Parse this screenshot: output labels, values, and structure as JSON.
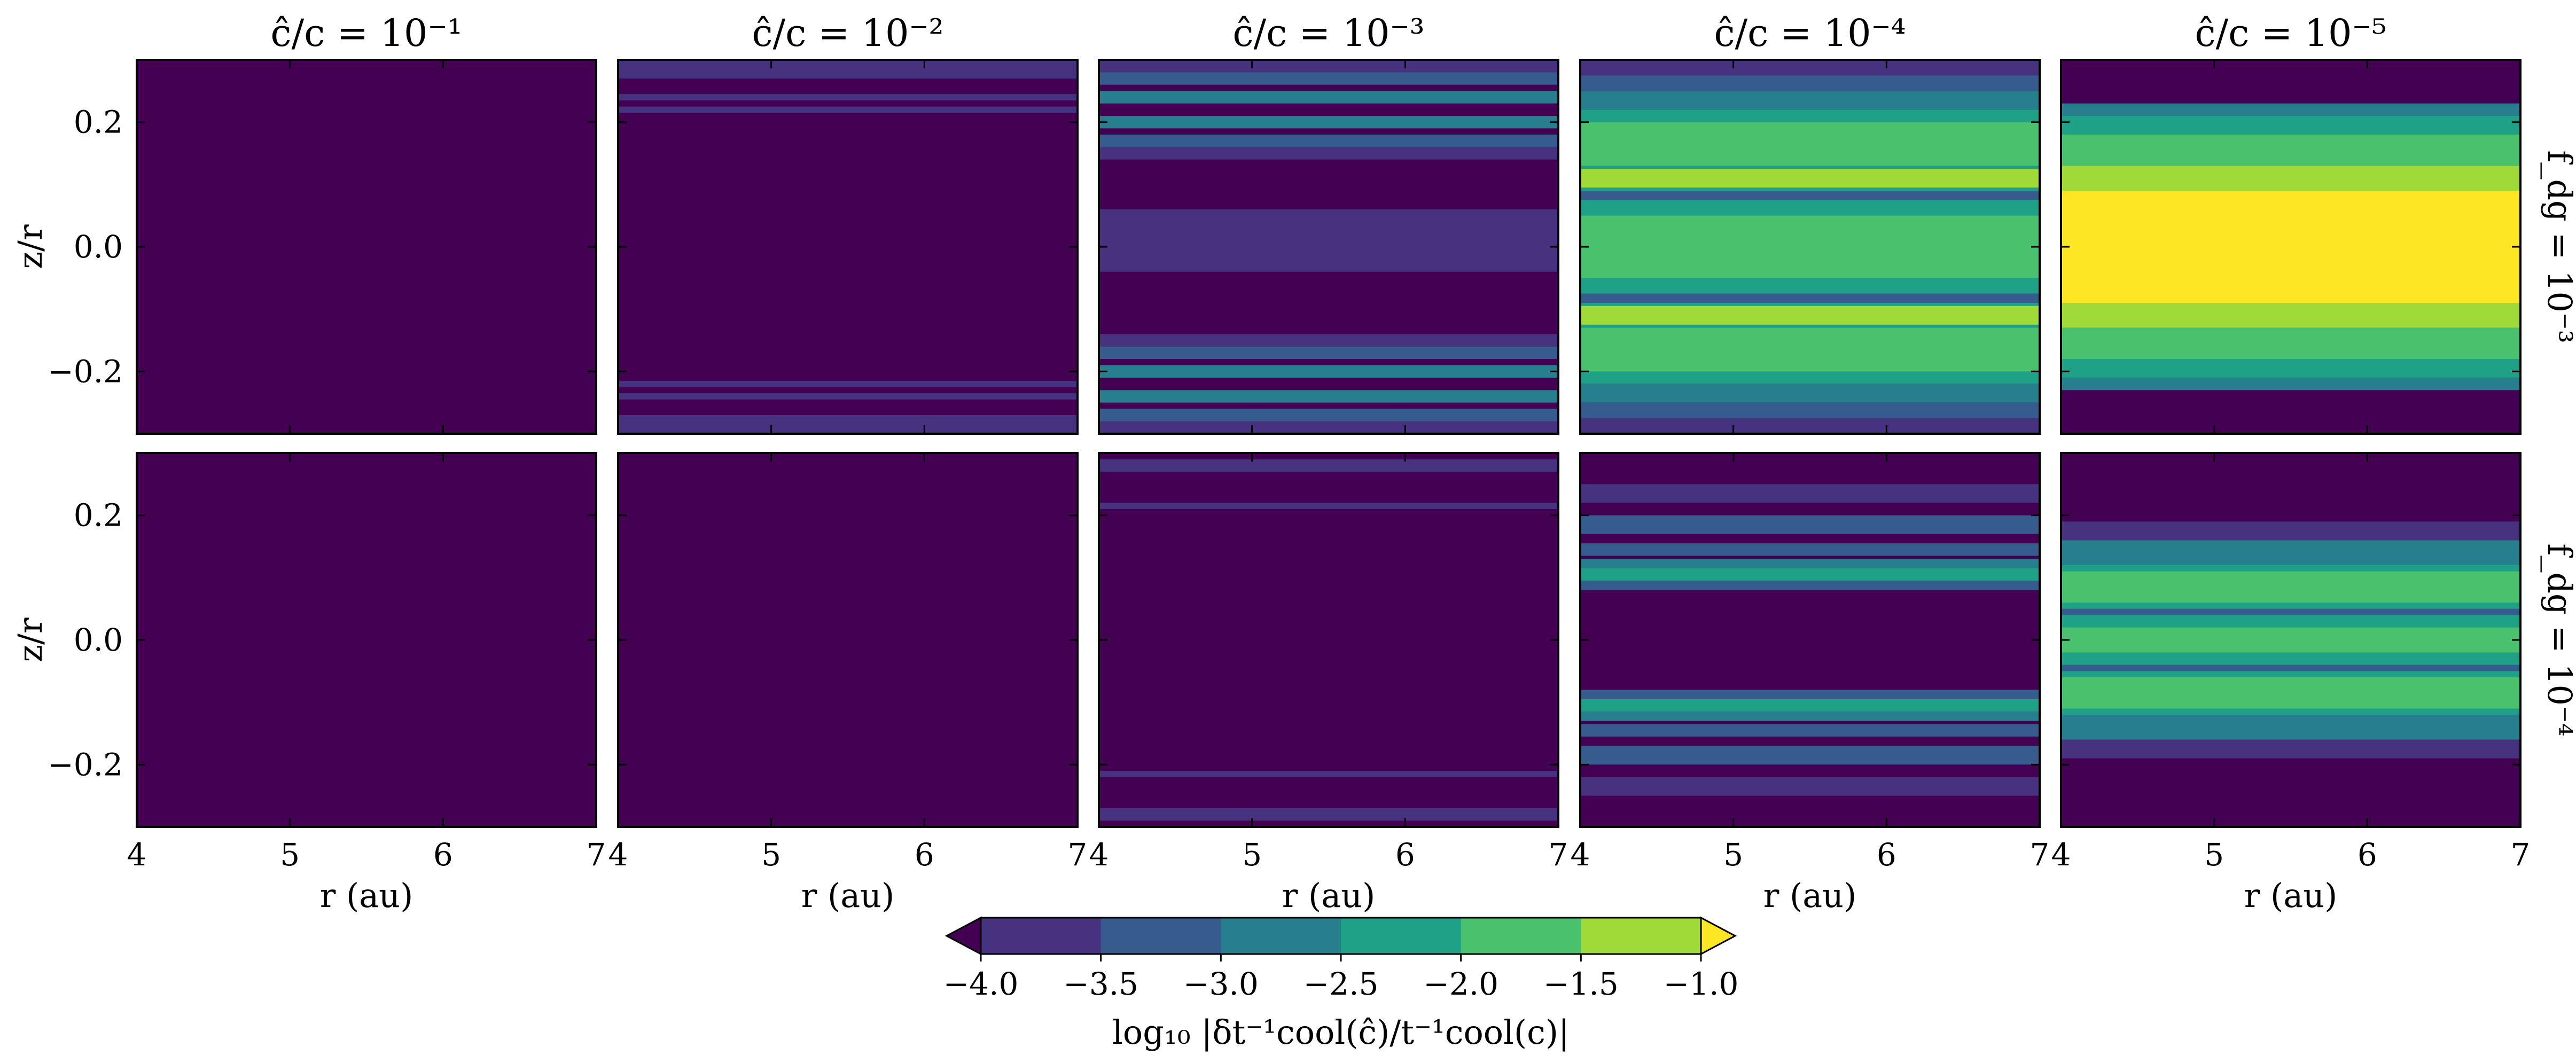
{
  "chart_data": {
    "type": "heatmap",
    "description_scale": "filled contour, viridis, 7 levels",
    "column_titles": [
      "ĉ/c = 10⁻¹",
      "ĉ/c = 10⁻²",
      "ĉ/c = 10⁻³",
      "ĉ/c = 10⁻⁴",
      "ĉ/c = 10⁻⁵"
    ],
    "row_labels": [
      "f_dg = 10⁻³",
      "f_dg = 10⁻⁴"
    ],
    "xlabel": "r (au)",
    "ylabel": "z/r",
    "xlim": [
      4,
      7
    ],
    "ylim": [
      -0.3,
      0.3
    ],
    "xticks": [
      4,
      5,
      6,
      7
    ],
    "xtick_labels": [
      "4",
      "5",
      "6",
      "7"
    ],
    "yticks": [
      0.2,
      0.0,
      -0.2
    ],
    "ytick_labels": [
      "0.2",
      "0.0",
      "−0.2"
    ],
    "colorbar": {
      "label": "log₁₀ |δt⁻¹cool(ĉ)/t⁻¹cool(c)|",
      "levels": [
        -4.0,
        -3.5,
        -3.0,
        -2.5,
        -2.0,
        -1.5,
        -1.0
      ],
      "tick_labels": [
        "−4.0",
        "−3.5",
        "−3.0",
        "−2.5",
        "−2.0",
        "−1.5",
        "−1.0"
      ],
      "extend": "both",
      "colors": [
        "#440154",
        "#46327e",
        "#365c8d",
        "#277f8e",
        "#1fa187",
        "#4ac16d",
        "#a0da39",
        "#fde725"
      ],
      "under_color": "#440154",
      "over_color": "#fde725"
    },
    "panels": [
      {
        "row": 0,
        "col": 0,
        "background_level": 0,
        "bands": []
      },
      {
        "row": 0,
        "col": 1,
        "background_level": 0,
        "bands": [
          {
            "z_outer": 0.3,
            "z_inner": 0.27,
            "level": 1,
            "symmetric": true
          },
          {
            "z_outer": 0.245,
            "z_inner": 0.235,
            "level": 1,
            "symmetric": true
          },
          {
            "z_outer": 0.225,
            "z_inner": 0.215,
            "level": 1,
            "symmetric": true
          }
        ]
      },
      {
        "row": 0,
        "col": 2,
        "background_level": 0,
        "bands": [
          {
            "z_outer": 0.3,
            "z_inner": 0.28,
            "level": 1,
            "symmetric": true
          },
          {
            "z_outer": 0.28,
            "z_inner": 0.26,
            "level": 2,
            "symmetric": true
          },
          {
            "z_outer": 0.25,
            "z_inner": 0.23,
            "level": 3,
            "symmetric": true
          },
          {
            "z_outer": 0.21,
            "z_inner": 0.19,
            "level": 3,
            "symmetric": true
          },
          {
            "z_outer": 0.18,
            "z_inner": 0.16,
            "level": 2,
            "symmetric": true
          },
          {
            "z_outer": 0.16,
            "z_inner": 0.14,
            "level": 1,
            "symmetric": true
          },
          {
            "z_outer": 0.06,
            "z_inner": -0.04,
            "level": 1,
            "symmetric": false
          }
        ]
      },
      {
        "row": 0,
        "col": 3,
        "background_level": 0,
        "bands": [
          {
            "z_outer": 0.3,
            "z_inner": 0.275,
            "level": 1,
            "symmetric": true
          },
          {
            "z_outer": 0.275,
            "z_inner": 0.25,
            "level": 2,
            "symmetric": true
          },
          {
            "z_outer": 0.25,
            "z_inner": 0.22,
            "level": 3,
            "symmetric": true
          },
          {
            "z_outer": 0.22,
            "z_inner": -0.22,
            "level": 4,
            "symmetric": false
          },
          {
            "z_outer": 0.2,
            "z_inner": 0.13,
            "level": 5,
            "symmetric": true
          },
          {
            "z_outer": 0.125,
            "z_inner": 0.095,
            "level": 6,
            "symmetric": true
          },
          {
            "z_outer": 0.09,
            "z_inner": 0.075,
            "level": 2,
            "symmetric": true
          },
          {
            "z_outer": 0.05,
            "z_inner": -0.05,
            "level": 5,
            "symmetric": false
          }
        ]
      },
      {
        "row": 0,
        "col": 4,
        "background_level": 0,
        "bands": [
          {
            "z_outer": 0.23,
            "z_inner": 0.21,
            "level": 3,
            "symmetric": true
          },
          {
            "z_outer": 0.21,
            "z_inner": 0.18,
            "level": 4,
            "symmetric": true
          },
          {
            "z_outer": 0.18,
            "z_inner": 0.13,
            "level": 5,
            "symmetric": true
          },
          {
            "z_outer": 0.13,
            "z_inner": 0.09,
            "level": 6,
            "symmetric": true
          },
          {
            "z_outer": 0.09,
            "z_inner": -0.09,
            "level": 7,
            "symmetric": false
          }
        ]
      },
      {
        "row": 1,
        "col": 0,
        "background_level": 0,
        "bands": []
      },
      {
        "row": 1,
        "col": 1,
        "background_level": 0,
        "bands": []
      },
      {
        "row": 1,
        "col": 2,
        "background_level": 0,
        "bands": [
          {
            "z_outer": 0.29,
            "z_inner": 0.27,
            "level": 1,
            "symmetric": true
          },
          {
            "z_outer": 0.22,
            "z_inner": 0.21,
            "level": 1,
            "symmetric": true
          }
        ]
      },
      {
        "row": 1,
        "col": 3,
        "background_level": 0,
        "bands": [
          {
            "z_outer": 0.25,
            "z_inner": 0.22,
            "level": 1,
            "symmetric": true
          },
          {
            "z_outer": 0.2,
            "z_inner": 0.17,
            "level": 2,
            "symmetric": true
          },
          {
            "z_outer": 0.155,
            "z_inner": 0.135,
            "level": 2,
            "symmetric": true
          },
          {
            "z_outer": 0.13,
            "z_inner": 0.115,
            "level": 3,
            "symmetric": true
          },
          {
            "z_outer": 0.115,
            "z_inner": 0.095,
            "level": 4,
            "symmetric": true
          },
          {
            "z_outer": 0.095,
            "z_inner": 0.08,
            "level": 2,
            "symmetric": true
          }
        ]
      },
      {
        "row": 1,
        "col": 4,
        "background_level": 0,
        "bands": [
          {
            "z_outer": 0.19,
            "z_inner": 0.16,
            "level": 1,
            "symmetric": true
          },
          {
            "z_outer": 0.16,
            "z_inner": 0.12,
            "level": 3,
            "symmetric": true
          },
          {
            "z_outer": 0.12,
            "z_inner": -0.12,
            "level": 4,
            "symmetric": false
          },
          {
            "z_outer": 0.11,
            "z_inner": 0.06,
            "level": 5,
            "symmetric": true
          },
          {
            "z_outer": 0.05,
            "z_inner": 0.04,
            "level": 2,
            "symmetric": true
          },
          {
            "z_outer": 0.02,
            "z_inner": -0.02,
            "level": 5,
            "symmetric": false
          }
        ]
      }
    ]
  }
}
